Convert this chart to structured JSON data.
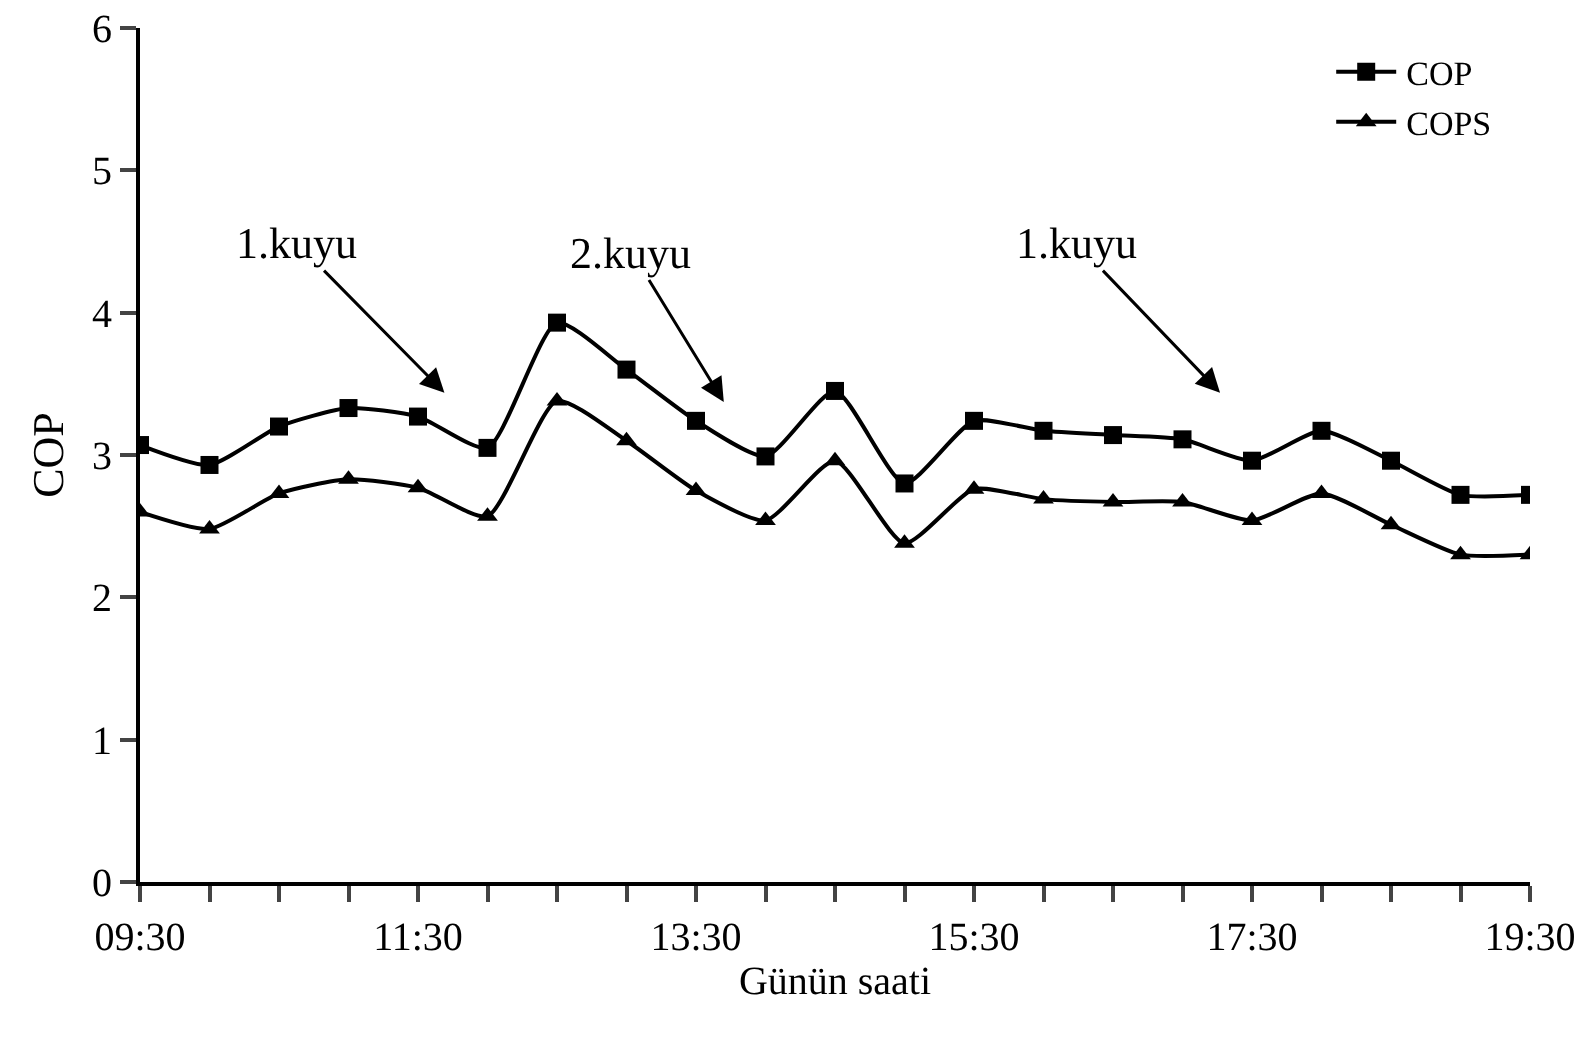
{
  "chart_data": {
    "type": "line",
    "xlabel": "Günün saati",
    "ylabel": "COP",
    "x": [
      9.5,
      10,
      10.5,
      11,
      11.5,
      12,
      12.5,
      13,
      13.5,
      14,
      14.5,
      15,
      15.5,
      16,
      16.5,
      17,
      17.5,
      18,
      18.5,
      19,
      19.5
    ],
    "series": [
      {
        "name": "COP",
        "color": "#000000",
        "marker": "square",
        "values": [
          3.07,
          2.93,
          3.2,
          3.33,
          3.27,
          3.05,
          3.93,
          3.6,
          3.24,
          2.99,
          3.45,
          2.8,
          3.24,
          3.17,
          3.14,
          3.11,
          2.96,
          3.17,
          2.96,
          2.72,
          2.72
        ]
      },
      {
        "name": "COPS",
        "color": "#000000",
        "marker": "triangle",
        "values": [
          2.6,
          2.48,
          2.73,
          2.83,
          2.77,
          2.57,
          3.38,
          3.1,
          2.75,
          2.54,
          2.96,
          2.38,
          2.76,
          2.69,
          2.67,
          2.67,
          2.54,
          2.73,
          2.51,
          2.3,
          2.3
        ]
      }
    ],
    "xlim": [
      9.5,
      19.5
    ],
    "xticks": [
      {
        "value": 9.5,
        "label": "09:30"
      },
      {
        "value": 10,
        "label": null
      },
      {
        "value": 10.5,
        "label": null
      },
      {
        "value": 11,
        "label": null
      },
      {
        "value": 11.5,
        "label": "11:30"
      },
      {
        "value": 12,
        "label": null
      },
      {
        "value": 12.5,
        "label": null
      },
      {
        "value": 13,
        "label": null
      },
      {
        "value": 13.5,
        "label": "13:30"
      },
      {
        "value": 14,
        "label": null
      },
      {
        "value": 14.5,
        "label": null
      },
      {
        "value": 15,
        "label": null
      },
      {
        "value": 15.5,
        "label": "15:30"
      },
      {
        "value": 16,
        "label": null
      },
      {
        "value": 16.5,
        "label": null
      },
      {
        "value": 17,
        "label": null
      },
      {
        "value": 17.5,
        "label": "17:30"
      },
      {
        "value": 18,
        "label": null
      },
      {
        "value": 18.5,
        "label": null
      },
      {
        "value": 19,
        "label": null
      },
      {
        "value": 19.5,
        "label": "19:30"
      }
    ],
    "ylim": [
      0,
      6
    ],
    "yticks": [
      0,
      1,
      2,
      3,
      4,
      5,
      6
    ],
    "annotations": [
      "1.kuyu",
      "2.kuyu",
      "1.kuyu"
    ],
    "grid": false,
    "legend": "top right",
    "line_style": "solid"
  }
}
